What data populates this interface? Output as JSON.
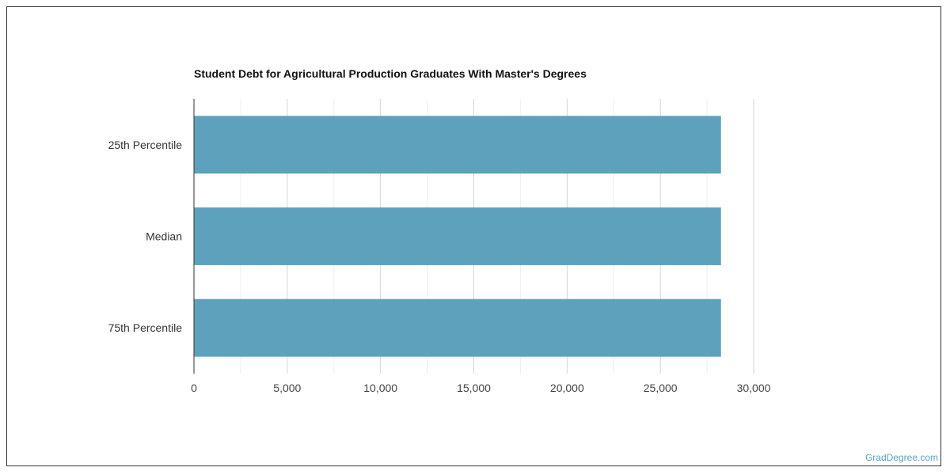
{
  "chart_data": {
    "type": "bar",
    "orientation": "horizontal",
    "title": "Student Debt for Agricultural Production Graduates With Master's Degrees",
    "categories": [
      "25th Percentile",
      "Median",
      "75th Percentile"
    ],
    "values": [
      28250,
      28250,
      28250
    ],
    "xlim": [
      0,
      30000
    ],
    "xticks": [
      "0",
      "5,000",
      "10,000",
      "15,000",
      "20,000",
      "25,000",
      "30,000"
    ],
    "xtick_values": [
      0,
      5000,
      10000,
      15000,
      20000,
      25000,
      30000
    ],
    "grid": true,
    "bar_color": "#5ea1bd"
  },
  "watermark": "GradDegree.com"
}
